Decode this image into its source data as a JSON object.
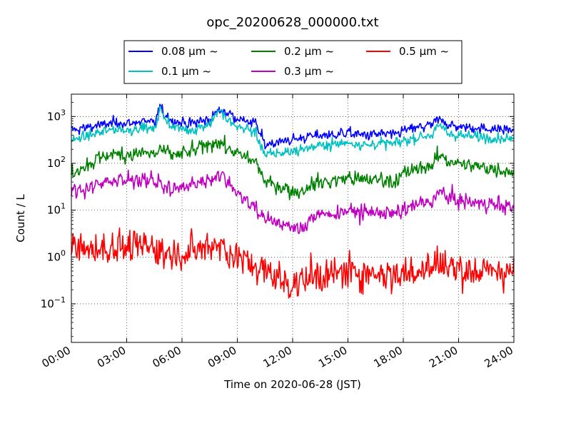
{
  "chart_data": {
    "type": "line",
    "title": "opc_20200628_000000.txt",
    "xlabel": "Time on 2020-06-28 (JST)",
    "ylabel": "Count / L",
    "yscale": "log",
    "xlim": [
      "00:00",
      "24:00"
    ],
    "ylim": [
      0.015,
      3000
    ],
    "grid": true,
    "legend_position": "top-center",
    "x_ticks": [
      "00:00",
      "03:00",
      "06:00",
      "09:00",
      "12:00",
      "15:00",
      "18:00",
      "21:00",
      "24:00"
    ],
    "y_ticks": [
      {
        "value": 0.1,
        "base": "10",
        "exp": "−1"
      },
      {
        "value": 1,
        "base": "10",
        "exp": "0"
      },
      {
        "value": 10,
        "base": "10",
        "exp": "1"
      },
      {
        "value": 100,
        "base": "10",
        "exp": "2"
      },
      {
        "value": 1000,
        "base": "10",
        "exp": "3"
      }
    ],
    "x_hours": [
      0,
      0.5,
      1,
      1.5,
      2,
      2.5,
      3,
      3.5,
      4,
      4.5,
      4.8,
      5,
      5.5,
      6,
      6.5,
      7,
      7.5,
      8,
      8.5,
      9,
      9.5,
      10,
      10.5,
      11,
      11.5,
      12,
      12.5,
      13,
      13.5,
      14,
      14.5,
      15,
      15.5,
      16,
      16.5,
      17,
      17.5,
      18,
      18.5,
      19,
      19.5,
      20,
      20.5,
      21,
      21.5,
      22,
      22.5,
      23,
      23.5,
      24
    ],
    "series": [
      {
        "name": "0.08 μm ~",
        "color": "#0000ff",
        "noise": 0.28,
        "values": [
          500,
          550,
          600,
          650,
          700,
          750,
          700,
          750,
          800,
          700,
          1600,
          1200,
          800,
          750,
          700,
          800,
          850,
          1400,
          1200,
          900,
          800,
          700,
          250,
          280,
          300,
          320,
          350,
          380,
          400,
          400,
          420,
          450,
          420,
          400,
          420,
          430,
          400,
          500,
          550,
          600,
          650,
          900,
          650,
          600,
          580,
          560,
          550,
          540,
          530,
          520
        ]
      },
      {
        "name": "0.1 μm ~",
        "color": "#00c0c0",
        "noise": 0.28,
        "values": [
          300,
          350,
          400,
          450,
          500,
          550,
          500,
          550,
          600,
          500,
          1500,
          1000,
          600,
          550,
          500,
          600,
          700,
          1400,
          800,
          600,
          550,
          450,
          150,
          160,
          170,
          180,
          200,
          220,
          240,
          250,
          260,
          280,
          260,
          240,
          260,
          270,
          260,
          300,
          330,
          380,
          400,
          650,
          420,
          400,
          380,
          370,
          360,
          350,
          340,
          330
        ]
      },
      {
        "name": "0.2 μm ~",
        "color": "#008000",
        "noise": 0.4,
        "values": [
          60,
          80,
          100,
          130,
          150,
          160,
          150,
          160,
          170,
          150,
          200,
          180,
          150,
          160,
          180,
          220,
          250,
          300,
          200,
          160,
          130,
          110,
          40,
          35,
          30,
          25,
          25,
          35,
          40,
          40,
          45,
          50,
          45,
          45,
          45,
          45,
          40,
          60,
          70,
          80,
          90,
          150,
          110,
          100,
          90,
          85,
          80,
          75,
          70,
          65
        ]
      },
      {
        "name": "0.3 μm ~",
        "color": "#c000c0",
        "noise": 0.45,
        "values": [
          25,
          28,
          30,
          35,
          40,
          45,
          40,
          45,
          50,
          40,
          40,
          30,
          28,
          30,
          35,
          40,
          45,
          60,
          40,
          25,
          15,
          12,
          6,
          6,
          5,
          4,
          4,
          7,
          8,
          8,
          9,
          10,
          9,
          9,
          9,
          9,
          8,
          10,
          12,
          14,
          15,
          25,
          18,
          16,
          15,
          14,
          14,
          13,
          12,
          12
        ]
      },
      {
        "name": "0.5 μm ~",
        "color": "#ff0000",
        "noise": 0.9,
        "values": [
          1.5,
          1.5,
          1.5,
          1.5,
          1.5,
          1.8,
          1.5,
          1.6,
          1.8,
          1.5,
          1.5,
          1.2,
          1.2,
          1.2,
          1.3,
          1.5,
          1.8,
          2,
          1.2,
          1,
          0.8,
          0.6,
          0.5,
          0.4,
          0.3,
          0.25,
          0.3,
          0.4,
          0.4,
          0.4,
          0.45,
          0.5,
          0.45,
          0.45,
          0.45,
          0.45,
          0.4,
          0.45,
          0.5,
          0.55,
          0.6,
          0.8,
          0.6,
          0.55,
          0.5,
          0.5,
          0.5,
          0.5,
          0.5,
          0.5
        ]
      }
    ]
  }
}
